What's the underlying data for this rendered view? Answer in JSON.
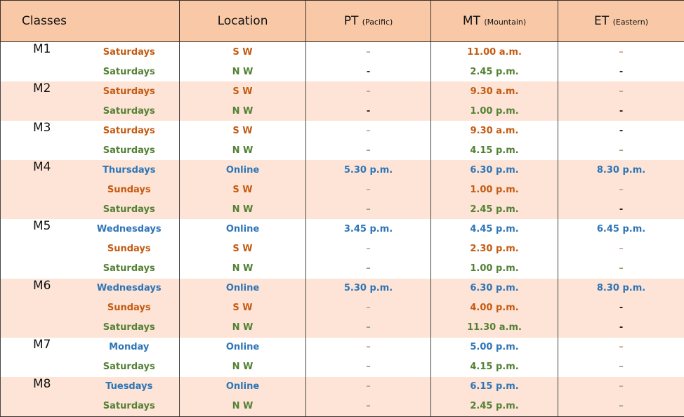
{
  "headers": {
    "classes": "Classes",
    "location": "Location",
    "pt": "PT",
    "pt_sub": "(Pacific)",
    "mt": "MT",
    "mt_sub": "(Mountain)",
    "et": "ET",
    "et_sub": "(Eastern)"
  },
  "colors": {
    "header_bg": "#f9c9a7",
    "band_tint": "#fde4d6",
    "sw_orange": "#c55a11",
    "nw_green": "#538135",
    "online_blue": "#2e75b6"
  },
  "groups": [
    {
      "code": "M1",
      "rows": [
        {
          "day": "Saturdays",
          "loc": "S W",
          "pt": "–",
          "mt": "11.00 a.m.",
          "et": "–"
        },
        {
          "day": "Saturdays",
          "loc": "N W",
          "pt": "-",
          "mt": "2.45 p.m.",
          "et": "-"
        }
      ]
    },
    {
      "code": "M2",
      "rows": [
        {
          "day": "Saturdays",
          "loc": "S W",
          "pt": "–",
          "mt": "9.30 a.m.",
          "et": "–"
        },
        {
          "day": "Saturdays",
          "loc": "N W",
          "pt": "-",
          "mt": "1.00 p.m.",
          "et": "-"
        }
      ]
    },
    {
      "code": "M3",
      "rows": [
        {
          "day": "Saturdays",
          "loc": "S W",
          "pt": "–",
          "mt": "9.30 a.m.",
          "et": "-"
        },
        {
          "day": "Saturdays",
          "loc": "N W",
          "pt": "–",
          "mt": "4.15 p.m.",
          "et": "–"
        }
      ]
    },
    {
      "code": "M4",
      "rows": [
        {
          "day": "Thursdays",
          "loc": "Online",
          "pt": "5.30 p.m.",
          "mt": "6.30 p.m.",
          "et": "8.30 p.m."
        },
        {
          "day": "Sundays",
          "loc": "S W",
          "pt": "–",
          "mt": "1.00 p.m.",
          "et": "–"
        },
        {
          "day": "Saturdays",
          "loc": "N W",
          "pt": "–",
          "mt": "2.45 p.m.",
          "et": "-"
        }
      ]
    },
    {
      "code": "M5",
      "rows": [
        {
          "day": "Wednesdays",
          "loc": "Online",
          "pt": "3.45 p.m.",
          "mt": "4.45 p.m.",
          "et": "6.45 p.m."
        },
        {
          "day": "Sundays",
          "loc": "S W",
          "pt": "–",
          "mt": "2.30 p.m.",
          "et": "–"
        },
        {
          "day": "Saturdays",
          "loc": "N W",
          "pt": "–",
          "mt": "1.00 p.m.",
          "et": "–"
        }
      ]
    },
    {
      "code": "M6",
      "rows": [
        {
          "day": "Wednesdays",
          "loc": "Online",
          "pt": "5.30 p.m.",
          "mt": "6.30 p.m.",
          "et": "8.30 p.m."
        },
        {
          "day": "Sundays",
          "loc": "S W",
          "pt": "–",
          "mt": "4.00 p.m.",
          "et": "-"
        },
        {
          "day": "Saturdays",
          "loc": "N W",
          "pt": "–",
          "mt": "11.30 a.m.",
          "et": "-"
        }
      ]
    },
    {
      "code": "M7",
      "rows": [
        {
          "day": "Monday",
          "loc": "Online",
          "pt": "–",
          "mt": "5.00 p.m.",
          "et": "–"
        },
        {
          "day": "Saturdays",
          "loc": "N W",
          "pt": "–",
          "mt": "4.15 p.m.",
          "et": "–"
        }
      ]
    },
    {
      "code": "M8",
      "rows": [
        {
          "day": "Tuesdays",
          "loc": "Online",
          "pt": "–",
          "mt": "6.15 p.m.",
          "et": "–"
        },
        {
          "day": "Saturdays",
          "loc": "N W",
          "pt": "–",
          "mt": "2.45 p.m.",
          "et": "–"
        }
      ]
    }
  ]
}
